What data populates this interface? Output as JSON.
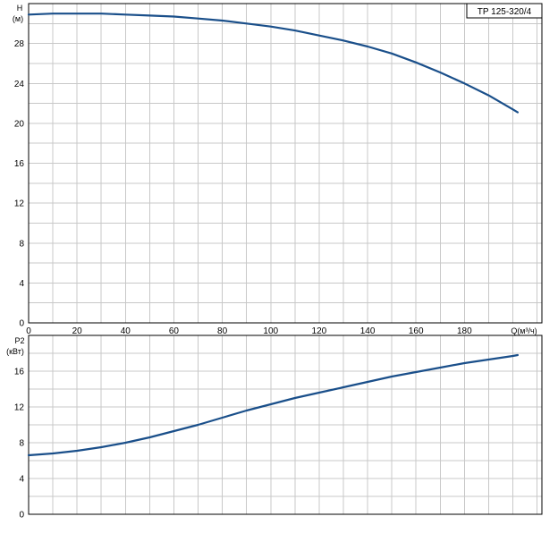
{
  "chart_data": [
    {
      "type": "line",
      "title": "TP 125-320/4",
      "ylabel": "H",
      "yunit": "(м)",
      "xlabel": "Q(м³/ч)",
      "xlim": [
        0,
        212
      ],
      "ylim": [
        0,
        32
      ],
      "xticks": [
        0,
        20,
        40,
        60,
        80,
        100,
        120,
        140,
        160,
        180
      ],
      "yticks": [
        0,
        4,
        8,
        12,
        16,
        20,
        24,
        28
      ],
      "grid": true,
      "series": [
        {
          "x": [
            0,
            10,
            20,
            30,
            40,
            50,
            60,
            70,
            80,
            90,
            100,
            110,
            120,
            130,
            140,
            150,
            160,
            170,
            180,
            190,
            200,
            202
          ],
          "y": [
            30.9,
            31.0,
            31.0,
            31.0,
            30.9,
            30.8,
            30.7,
            30.5,
            30.3,
            30.0,
            29.7,
            29.3,
            28.8,
            28.3,
            27.7,
            27.0,
            26.1,
            25.1,
            24.0,
            22.8,
            21.4,
            21.1
          ]
        }
      ]
    },
    {
      "type": "line",
      "ylabel": "P2",
      "yunit": "(кВт)",
      "xlim": [
        0,
        212
      ],
      "ylim": [
        0,
        20
      ],
      "yticks": [
        0,
        4,
        8,
        12,
        16
      ],
      "grid": true,
      "series": [
        {
          "x": [
            0,
            10,
            20,
            30,
            40,
            50,
            60,
            70,
            80,
            90,
            100,
            110,
            120,
            130,
            140,
            150,
            160,
            170,
            180,
            190,
            200,
            202
          ],
          "y": [
            6.6,
            6.8,
            7.1,
            7.5,
            8.0,
            8.6,
            9.3,
            10.0,
            10.8,
            11.6,
            12.3,
            13.0,
            13.6,
            14.2,
            14.8,
            15.4,
            15.9,
            16.4,
            16.9,
            17.3,
            17.7,
            17.8
          ]
        }
      ]
    }
  ]
}
